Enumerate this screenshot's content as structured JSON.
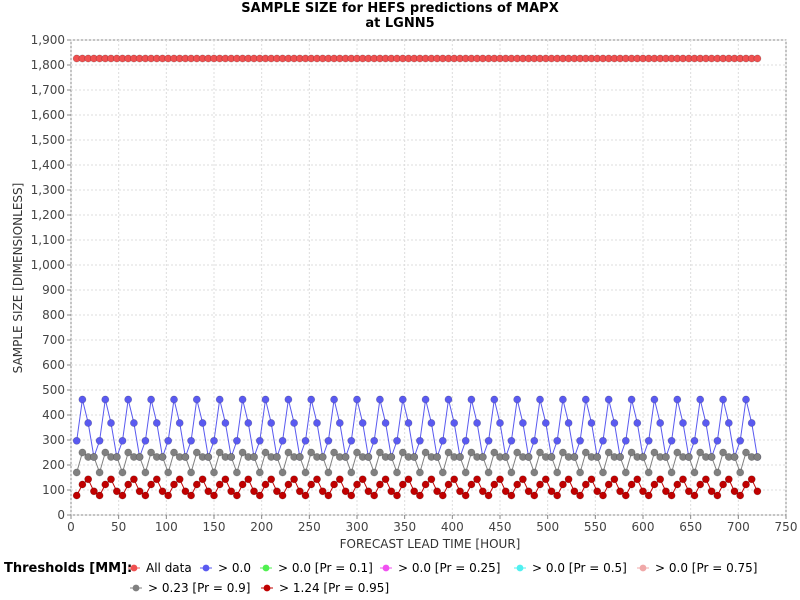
{
  "chart_data": {
    "type": "line",
    "title_line1": "SAMPLE SIZE for HEFS predictions of MAPX",
    "title_line2": "at LGNN5",
    "xlabel": "FORECAST LEAD TIME [HOUR]",
    "ylabel": "SAMPLE SIZE [DIMENSIONLESS]",
    "xlim": [
      0,
      750
    ],
    "ylim": [
      0,
      1900
    ],
    "x_ticks": [
      0,
      50,
      100,
      150,
      200,
      250,
      300,
      350,
      400,
      450,
      500,
      550,
      600,
      650,
      700,
      750
    ],
    "y_ticks": [
      0,
      100,
      200,
      300,
      400,
      500,
      600,
      700,
      800,
      900,
      1000,
      1100,
      1200,
      1300,
      1400,
      1500,
      1600,
      1700,
      1800,
      1900
    ],
    "y_tick_labels": [
      "0",
      "100",
      "200",
      "300",
      "400",
      "500",
      "600",
      "700",
      "800",
      "900",
      "1,000",
      "1,100",
      "1,200",
      "1,300",
      "1,400",
      "1,500",
      "1,600",
      "1,700",
      "1,800",
      "1,900"
    ],
    "grid": true,
    "x_start": 6,
    "x_step": 6,
    "x_end": 720,
    "legend_title": "Thresholds [MM]:",
    "legend_position": "bottom",
    "series": [
      {
        "name": "All data",
        "color": "#f05050",
        "pattern": [
          1826
        ],
        "plotted": true
      },
      {
        "name": "> 0.0",
        "color": "#5a5af0",
        "pattern": [
          297,
          462,
          368,
          232
        ],
        "plotted": true
      },
      {
        "name": "> 0.0 [Pr = 0.1]",
        "color": "#50f050",
        "pattern": [],
        "plotted": false
      },
      {
        "name": "> 0.0 [Pr = 0.25]",
        "color": "#f050f0",
        "pattern": [],
        "plotted": false
      },
      {
        "name": "> 0.0 [Pr = 0.5]",
        "color": "#50f0f0",
        "pattern": [],
        "plotted": false
      },
      {
        "name": "> 0.0 [Pr = 0.75]",
        "color": "#f0a8a8",
        "pattern": [],
        "plotted": false
      },
      {
        "name": "> 0.23 [Pr = 0.9]",
        "color": "#808080",
        "pattern": [
          170,
          250,
          232,
          232
        ],
        "plotted": true
      },
      {
        "name": "> 1.24 [Pr = 0.95]",
        "color": "#c00000",
        "pattern": [
          78,
          122,
          143,
          95
        ],
        "plotted": true
      }
    ]
  }
}
